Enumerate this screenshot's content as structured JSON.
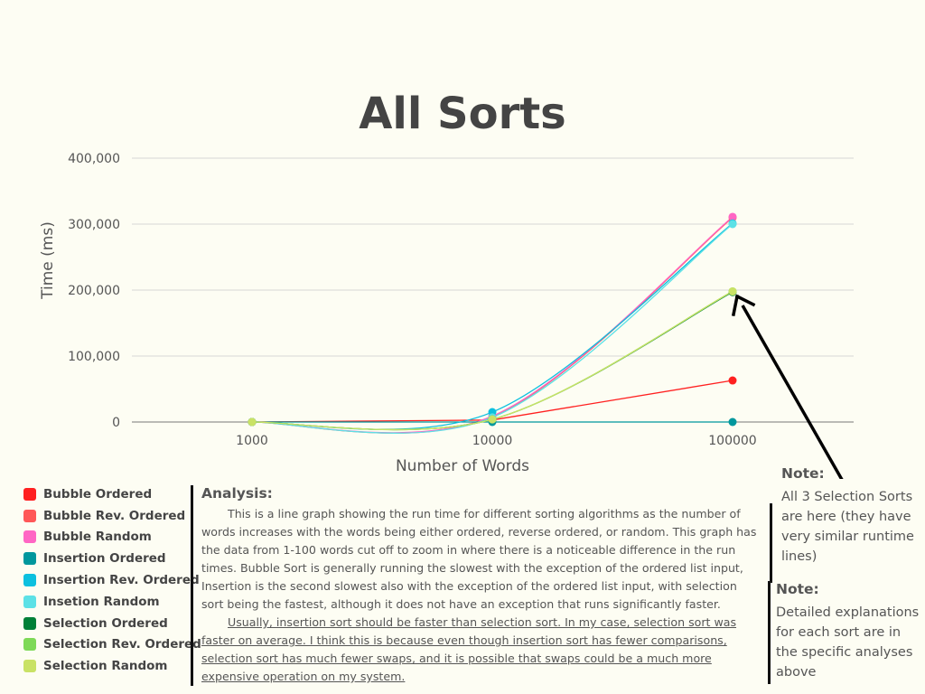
{
  "chart_data": {
    "type": "line",
    "title": "All Sorts",
    "xlabel": "Number of Words",
    "ylabel": "Time (ms)",
    "categories": [
      "1000",
      "10000",
      "100000"
    ],
    "ylim": [
      0,
      400000
    ],
    "yticks": [
      "0",
      "100,000",
      "200,000",
      "300,000",
      "400,000"
    ],
    "grid": true,
    "legend_position": "bottom-left",
    "series": [
      {
        "name": "Bubble Ordered",
        "color": "#ff2020",
        "values": [
          0,
          3000,
          63000
        ]
      },
      {
        "name": "Bubble Rev. Ordered",
        "color": "#ff5757",
        "values": [
          0,
          8000,
          310000
        ]
      },
      {
        "name": "Bubble Random",
        "color": "#ff66c4",
        "values": [
          0,
          9000,
          311000
        ]
      },
      {
        "name": "Insertion Ordered",
        "color": "#00979d",
        "values": [
          0,
          0,
          0
        ]
      },
      {
        "name": "Insertion Rev. Ordered",
        "color": "#0cc0df",
        "values": [
          0,
          15000,
          301000
        ]
      },
      {
        "name": "Insetion Random",
        "color": "#5ce1e6",
        "values": [
          0,
          7000,
          300000
        ]
      },
      {
        "name": "Selection Ordered",
        "color": "#008037",
        "values": [
          0,
          4000,
          197000
        ]
      },
      {
        "name": "Selection Rev. Ordered",
        "color": "#7ed957",
        "values": [
          0,
          4000,
          198000
        ]
      },
      {
        "name": "Selection Random",
        "color": "#c9e265",
        "values": [
          0,
          4000,
          198000
        ]
      }
    ]
  },
  "analysis": {
    "heading": "Analysis:",
    "paragraph1": "This is a line graph showing the run time for different sorting algorithms as the number of words increases with the words being either ordered, reverse ordered, or random. This graph has the data from 1-100 words cut off to zoom in where there is a noticeable difference in the run times. Bubble Sort is generally running the slowest with the exception of the ordered list input, Insertion is the second slowest also with the exception of the ordered list input, with selection sort being the fastest, although it does not have an exception that runs significantly faster.",
    "paragraph2": "Usually, insertion sort should be faster than selection sort. In my case, selection sort was faster on average. I think this is because even though insertion sort has fewer comparisons, selection sort has much fewer swaps, and it is possible that swaps could be a much more expensive operation on my system."
  },
  "note1": {
    "heading": "Note:",
    "text": "All 3 Selection Sorts are here (they have very similar runtime lines)"
  },
  "note2": {
    "heading": "Note:",
    "text": "Detailed explanations for each sort are in the specific analyses above"
  },
  "colors": {
    "background": "#fdfdf3",
    "text": "#555555",
    "arrow": "#000000"
  }
}
